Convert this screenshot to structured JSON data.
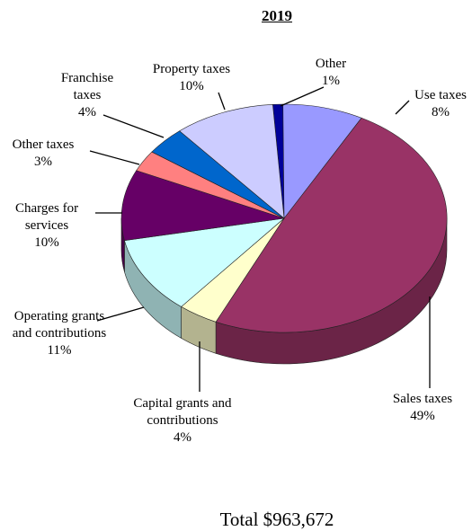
{
  "chart_data": {
    "type": "pie",
    "title": "2019",
    "categories": [
      "Other",
      "Use taxes",
      "Sales taxes",
      "Capital grants and contributions",
      "Operating grants and contributions",
      "Charges for services",
      "Other taxes",
      "Franchise taxes",
      "Property taxes"
    ],
    "values": [
      1,
      8,
      49,
      4,
      11,
      10,
      3,
      4,
      10
    ],
    "value_labels": [
      "1%",
      "8%",
      "49%",
      "4%",
      "11%",
      "10%",
      "3%",
      "4%",
      "10%"
    ],
    "colors": [
      "#000099",
      "#9999ff",
      "#993366",
      "#ffffcc",
      "#ccffff",
      "#660066",
      "#ff8080",
      "#0066cc",
      "#ccccff"
    ],
    "annotation": "Total $963,672"
  }
}
